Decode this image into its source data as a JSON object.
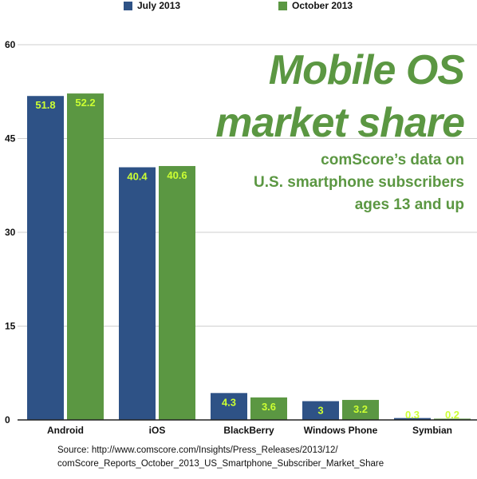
{
  "chart_data": {
    "type": "bar",
    "title_line1": "Mobile OS",
    "title_line2": "market share",
    "subtitle_lines": [
      "comScore’s data on",
      "U.S. smartphone subscribers",
      "ages 13 and up"
    ],
    "categories": [
      "Android",
      "iOS",
      "BlackBerry",
      "Windows Phone",
      "Symbian"
    ],
    "series": [
      {
        "name": "July 2013",
        "color": "#2e5286",
        "values": [
          51.8,
          40.4,
          4.3,
          3,
          0.3
        ],
        "labels": [
          "51.8",
          "40.4",
          "4.3",
          "3",
          "0.3"
        ]
      },
      {
        "name": "October 2013",
        "color": "#5b9742",
        "values": [
          52.2,
          40.6,
          3.6,
          3.2,
          0.2
        ],
        "labels": [
          "52.2",
          "40.6",
          "3.6",
          "3.2",
          "0.2"
        ]
      }
    ],
    "yticks": [
      "0",
      "15",
      "30",
      "45",
      "60"
    ],
    "ylim": [
      0,
      60
    ],
    "grid": true,
    "legend_position": "top",
    "data_label_color": "#ccff33",
    "source_line1": "Source: http://www.comscore.com/Insights/Press_Releases/2013/12/",
    "source_line2": "comScore_Reports_October_2013_US_Smartphone_Subscriber_Market_Share"
  }
}
